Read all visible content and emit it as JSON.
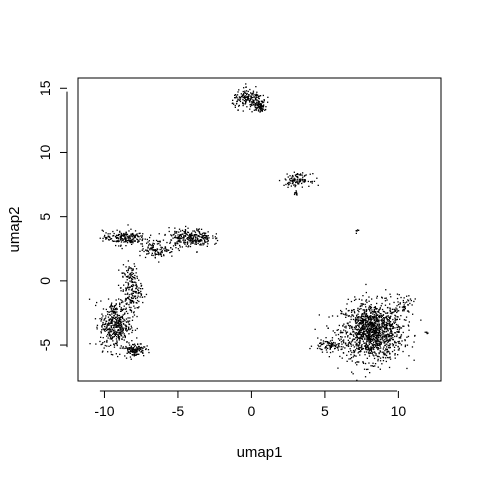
{
  "chart_data": {
    "type": "scatter",
    "xlabel": "umap1",
    "ylabel": "umap2",
    "xlim": [
      -11.8,
      12.9
    ],
    "ylim": [
      -7.8,
      15.8
    ],
    "x_ticks": [
      "-10",
      "-5",
      "0",
      "5",
      "10"
    ],
    "y_ticks": [
      "-5",
      "0",
      "5",
      "10",
      "15"
    ],
    "x_tick_values": [
      -10,
      -5,
      0,
      5,
      10
    ],
    "y_tick_values": [
      -5,
      0,
      5,
      10,
      15
    ],
    "grid": false,
    "legend": "none",
    "point_color": "#000000",
    "clusters": [
      {
        "cx": 8.2,
        "cy": -3.9,
        "sx": 1.3,
        "sy": 1.4,
        "n": 1300
      },
      {
        "cx": 5.3,
        "cy": -5.0,
        "sx": 0.7,
        "sy": 0.3,
        "n": 90
      },
      {
        "cx": 10.4,
        "cy": -1.7,
        "sx": 0.4,
        "sy": 0.5,
        "n": 40
      },
      {
        "cx": 11.9,
        "cy": -4.0,
        "sx": 0.08,
        "sy": 0.05,
        "n": 5
      },
      {
        "cx": -9.3,
        "cy": -3.4,
        "sx": 0.65,
        "sy": 1.2,
        "n": 420
      },
      {
        "cx": -8.0,
        "cy": -5.3,
        "sx": 0.45,
        "sy": 0.35,
        "n": 120
      },
      {
        "cx": -8.2,
        "cy": -0.6,
        "sx": 0.45,
        "sy": 1.2,
        "n": 200
      },
      {
        "cx": -8.7,
        "cy": 3.4,
        "sx": 0.9,
        "sy": 0.35,
        "n": 200
      },
      {
        "cx": -6.4,
        "cy": 2.5,
        "sx": 0.7,
        "sy": 0.4,
        "n": 110
      },
      {
        "cx": -4.2,
        "cy": 3.4,
        "sx": 0.9,
        "sy": 0.45,
        "n": 270
      },
      {
        "cx": -0.2,
        "cy": 14.2,
        "sx": 0.7,
        "sy": 0.45,
        "n": 170
      },
      {
        "cx": 0.5,
        "cy": 13.7,
        "sx": 0.3,
        "sy": 0.3,
        "n": 80
      },
      {
        "cx": 3.1,
        "cy": 7.9,
        "sx": 0.55,
        "sy": 0.3,
        "n": 110
      },
      {
        "cx": 3.0,
        "cy": 6.9,
        "sx": 0.1,
        "sy": 0.15,
        "n": 10
      },
      {
        "cx": 7.1,
        "cy": 3.9,
        "sx": 0.08,
        "sy": 0.08,
        "n": 6
      }
    ]
  }
}
